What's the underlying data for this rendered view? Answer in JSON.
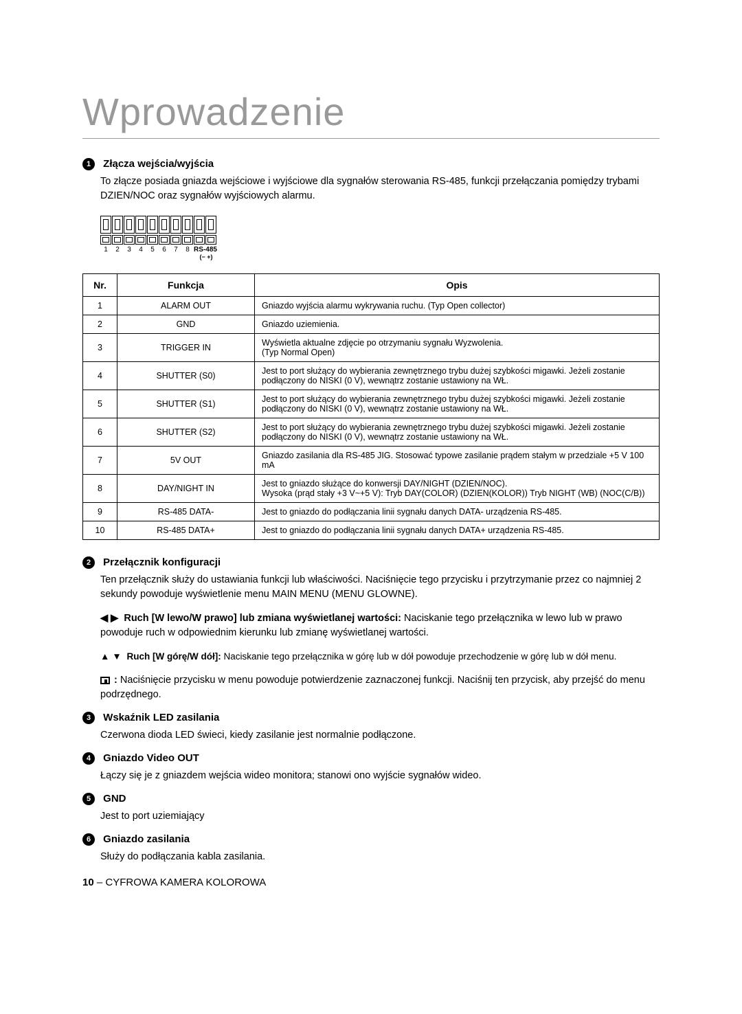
{
  "title": "Wprowadzenie",
  "sec1": {
    "num": "1",
    "head": "Złącza wejścia/wyjścia",
    "desc": "To złącze posiada gniazda wejściowe i wyjściowe dla sygnałów sterowania RS-485, funkcji przełączania pomiędzy trybami DZIEN/NOC oraz sygnałów wyjściowych alarmu."
  },
  "connector": {
    "labels": [
      "1",
      "2",
      "3",
      "4",
      "5",
      "6",
      "7",
      "8"
    ],
    "rs": "RS-485",
    "rs_sub": "(− +)"
  },
  "table": {
    "headers": {
      "nr": "Nr.",
      "fn": "Funkcja",
      "desc": "Opis"
    },
    "rows": [
      {
        "nr": "1",
        "fn": "ALARM OUT",
        "desc": "Gniazdo wyjścia alarmu wykrywania ruchu. (Typ Open collector)"
      },
      {
        "nr": "2",
        "fn": "GND",
        "desc": "Gniazdo uziemienia."
      },
      {
        "nr": "3",
        "fn": "TRIGGER IN",
        "desc": "Wyświetla aktualne zdjęcie po otrzymaniu sygnału Wyzwolenia.\n(Typ Normal Open)"
      },
      {
        "nr": "4",
        "fn": "SHUTTER (S0)",
        "desc": "Jest to port służący do wybierania zewnętrznego trybu dużej szybkości migawki. Jeżeli zostanie podłączony do NISKI (0 V), wewnątrz zostanie ustawiony na WŁ."
      },
      {
        "nr": "5",
        "fn": "SHUTTER (S1)",
        "desc": "Jest to port służący do wybierania zewnętrznego trybu dużej szybkości migawki. Jeżeli zostanie podłączony do NISKI (0 V), wewnątrz zostanie ustawiony na WŁ."
      },
      {
        "nr": "6",
        "fn": "SHUTTER (S2)",
        "desc": "Jest to port służący do wybierania zewnętrznego trybu dużej szybkości migawki. Jeżeli zostanie podłączony do NISKI (0 V), wewnątrz zostanie ustawiony na WŁ."
      },
      {
        "nr": "7",
        "fn": "5V OUT",
        "desc": "Gniazdo zasilania dla RS-485 JIG. Stosować typowe zasilanie prądem stałym w przedziale +5 V 100 mA"
      },
      {
        "nr": "8",
        "fn": "DAY/NIGHT IN",
        "desc": "Jest to gniazdo służące do konwersji DAY/NIGHT (DZIEN/NOC).\nWysoka (prąd stały +3 V~+5 V): Tryb DAY(COLOR) (DZIEN(KOLOR)) Tryb NIGHT (WB) (NOC(C/B))"
      },
      {
        "nr": "9",
        "fn": "RS-485 DATA-",
        "desc": "Jest to gniazdo do podłączania linii sygnału danych DATA- urządzenia RS-485."
      },
      {
        "nr": "10",
        "fn": "RS-485 DATA+",
        "desc": "Jest to gniazdo do podłączania linii sygnału danych DATA+ urządzenia RS-485."
      }
    ]
  },
  "sec2": {
    "num": "2",
    "head": "Przełącznik konfiguracji",
    "desc": "Ten przełącznik służy do ustawiania funkcji lub właściwości. Naciśnięcie tego przycisku i przytrzymanie przez co najmniej 2 sekundy powoduje wyświetlenie menu MAIN MENU (MENU GLOWNE).",
    "lr_bold": "Ruch [W lewo/W prawo] lub zmiana wyświetlanej wartości:",
    "lr_rest": " Naciskanie tego przełącznika w lewo lub w prawo powoduje ruch w odpowiednim kierunku lub zmianę wyświetlanej wartości.",
    "ud_bold": "Ruch [W górę/W dół]:",
    "ud_rest": " Naciskanie tego przełącznika w górę lub w dół powoduje przechodzenie w górę lub w dół menu.",
    "enter": " Naciśnięcie przycisku w menu powoduje potwierdzenie zaznaczonej funkcji. Naciśnij ten przycisk, aby przejść do menu podrzędnego."
  },
  "sec3": {
    "num": "3",
    "head": "Wskaźnik LED zasilania",
    "desc": "Czerwona dioda LED świeci, kiedy zasilanie jest normalnie podłączone."
  },
  "sec4": {
    "num": "4",
    "head": "Gniazdo Video OUT",
    "desc": "Łączy się je z gniazdem wejścia wideo monitora; stanowi ono wyjście sygnałów wideo."
  },
  "sec5": {
    "num": "5",
    "head": "GND",
    "desc": "Jest to port uziemiający"
  },
  "sec6": {
    "num": "6",
    "head": "Gniazdo zasilania",
    "desc": "Służy do podłączania kabla zasilania."
  },
  "footer": {
    "page": "10",
    "sep": " – ",
    "label": "CYFROWA KAMERA KOLOROWA"
  }
}
